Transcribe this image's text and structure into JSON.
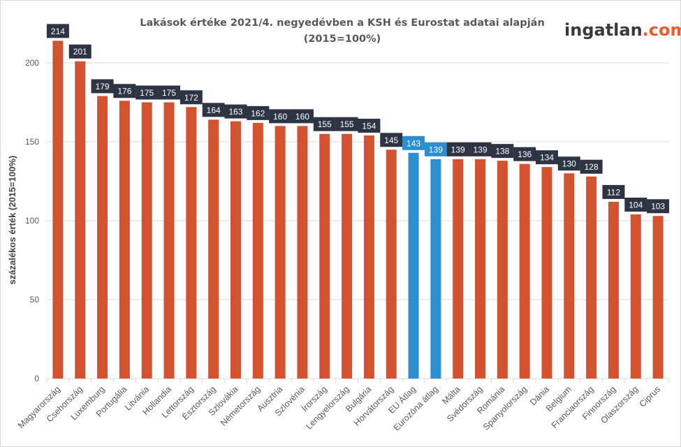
{
  "colors": {
    "bar": "#d35230",
    "highlight": "#2e8fcf",
    "label_box": "#2d3444",
    "grid": "#d9d9d9",
    "logo_dark": "#3a3a3a",
    "logo_accent": "#f05a32"
  },
  "logo": {
    "main": "ingatlan",
    "accent": ".com"
  },
  "chart_data": {
    "type": "bar",
    "title": [
      "Lakások értéke 2021/4. negyedévben a KSH és Eurostat adatai alapján",
      "(2015=100%)"
    ],
    "xlabel": "",
    "ylabel": "százalékos érték (2015=100%)",
    "ylim": [
      0,
      230
    ],
    "yticks": [
      0,
      50,
      100,
      150,
      200
    ],
    "grid": true,
    "categories": [
      "Magyarország",
      "Csehország",
      "Luxemburg",
      "Portugália",
      "Litvánia",
      "Hollandia",
      "Lettország",
      "Észtország",
      "Szlovákia",
      "Németország",
      "Ausztria",
      "Szlovénia",
      "Írország",
      "Lengyelország",
      "Bulgária",
      "Horvátország",
      "EU Átlag",
      "Eurozóna átlag",
      "Málta",
      "Svédország",
      "Románia",
      "Spanyolország",
      "Dánia",
      "Belgium",
      "Franciaország",
      "Finnország",
      "Olaszország",
      "Ciprus"
    ],
    "values": [
      214,
      201,
      179,
      176,
      175,
      175,
      172,
      164,
      163,
      162,
      160,
      160,
      155,
      155,
      154,
      145,
      143,
      139,
      139,
      139,
      138,
      136,
      134,
      130,
      128,
      112,
      104,
      103
    ],
    "highlighted": [
      "EU Átlag",
      "Eurozóna átlag"
    ]
  }
}
